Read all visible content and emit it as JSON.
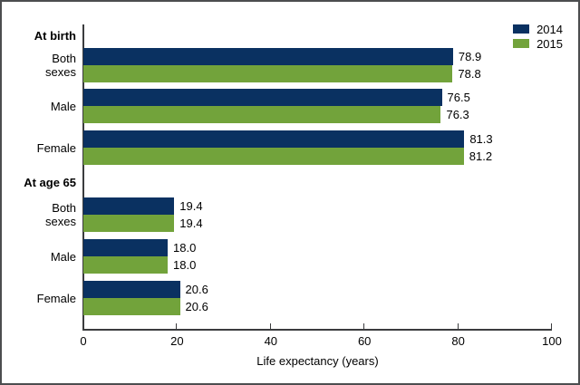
{
  "frame": {
    "background": "#ffffff",
    "border_color": "#4c4d4f"
  },
  "legend": {
    "position": "top-right",
    "items": [
      {
        "label": "2014",
        "color": "#0A3161"
      },
      {
        "label": "2015",
        "color": "#72A33B"
      }
    ]
  },
  "chart_data": {
    "type": "bar",
    "orientation": "horizontal",
    "title": "",
    "xlabel": "Life expectancy (years)",
    "ylabel": "",
    "xlim": [
      0,
      100
    ],
    "xticks": [
      0,
      20,
      40,
      60,
      80,
      100
    ],
    "grid": false,
    "legend_position": "top-right",
    "series_names": [
      "2014",
      "2015"
    ],
    "series_colors": [
      "#0A3161",
      "#72A33B"
    ],
    "sections": [
      {
        "header": "At birth",
        "rows": [
          {
            "label_lines": [
              "Both",
              "sexes"
            ],
            "values": [
              78.9,
              78.8
            ],
            "value_labels": [
              "78.9",
              "78.8"
            ]
          },
          {
            "label_lines": [
              "Male"
            ],
            "values": [
              76.5,
              76.3
            ],
            "value_labels": [
              "76.5",
              "76.3"
            ]
          },
          {
            "label_lines": [
              "Female"
            ],
            "values": [
              81.3,
              81.2
            ],
            "value_labels": [
              "81.3",
              "81.2"
            ]
          }
        ]
      },
      {
        "header": "At age 65",
        "rows": [
          {
            "label_lines": [
              "Both",
              "sexes"
            ],
            "values": [
              19.4,
              19.4
            ],
            "value_labels": [
              "19.4",
              "19.4"
            ]
          },
          {
            "label_lines": [
              "Male"
            ],
            "values": [
              18.0,
              18.0
            ],
            "value_labels": [
              "18.0",
              "18.0"
            ]
          },
          {
            "label_lines": [
              "Female"
            ],
            "values": [
              20.6,
              20.6
            ],
            "value_labels": [
              "20.6",
              "20.6"
            ]
          }
        ]
      }
    ]
  }
}
